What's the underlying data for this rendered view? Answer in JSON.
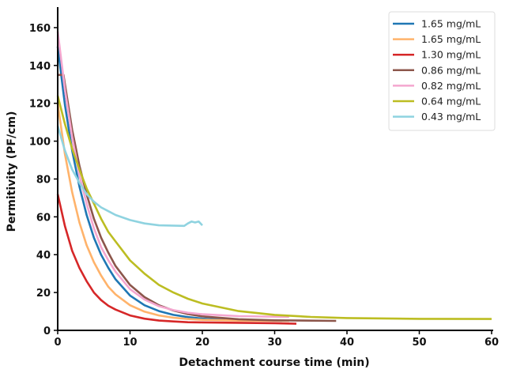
{
  "chart_data": {
    "type": "line",
    "title": "",
    "xlabel": "Detachment course time (min)",
    "ylabel": "Permitivity (PF/cm)",
    "xlim": [
      0,
      60
    ],
    "ylim": [
      0,
      170
    ],
    "xticks": [
      "0",
      "10",
      "20",
      "30",
      "40",
      "50",
      "60"
    ],
    "yticks": [
      "0",
      "20",
      "40",
      "60",
      "80",
      "100",
      "120",
      "140",
      "160"
    ],
    "grid": false,
    "legend_position": "top-right",
    "series": [
      {
        "name": "1.65 mg/mL",
        "color": "#1f77b4",
        "x": [
          0,
          1,
          2,
          3,
          4,
          5,
          6,
          7,
          8,
          10,
          12,
          14,
          16,
          18,
          20,
          25,
          31
        ],
        "y": [
          150,
          119,
          95,
          76,
          61,
          49,
          40,
          33,
          27,
          18.4,
          13.3,
          10.2,
          8.2,
          7,
          6.2,
          5.4,
          5.1
        ]
      },
      {
        "name": "1.65 mg/mL",
        "color": "#ffb36b",
        "x": [
          0,
          1,
          2,
          3,
          4,
          5,
          6,
          7,
          8,
          10,
          12,
          14,
          16,
          18,
          20,
          25,
          32
        ],
        "y": [
          120,
          93,
          73,
          57,
          45,
          36,
          29,
          23,
          19,
          13.3,
          9.9,
          7.9,
          6.7,
          6,
          5.6,
          5.2,
          5
        ]
      },
      {
        "name": "1.30 mg/mL",
        "color": "#d62728",
        "x": [
          0,
          1,
          2,
          3,
          4,
          5,
          6,
          7,
          8,
          10,
          12,
          14,
          16,
          18,
          20,
          25,
          30,
          33
        ],
        "y": [
          72,
          55,
          42,
          33,
          26,
          20,
          16,
          13,
          11,
          7.9,
          6.2,
          5.2,
          4.7,
          4.3,
          4.2,
          4,
          3.8,
          3.5
        ]
      },
      {
        "name": "0.86 mg/mL",
        "color": "#8c564b",
        "x": [
          0,
          0.8,
          2,
          3,
          4,
          5,
          6,
          7,
          8,
          10,
          12,
          14,
          16,
          18,
          20,
          25,
          30,
          38.5
        ],
        "y": [
          135,
          135,
          106,
          87,
          72,
          59,
          49,
          41,
          34,
          24,
          17.6,
          13.3,
          10.5,
          8.6,
          7.4,
          5.9,
          5.3,
          5
        ]
      },
      {
        "name": "0.82 mg/mL",
        "color": "#f4a6cf",
        "x": [
          0,
          1,
          2,
          3,
          4,
          5,
          6,
          7,
          8,
          10,
          12,
          14,
          16,
          18,
          20,
          25,
          32
        ],
        "y": [
          158,
          127,
          102,
          82,
          67,
          54,
          44,
          37,
          31,
          21.8,
          16.3,
          12.8,
          10.7,
          9.3,
          8.5,
          7.5,
          7.1
        ]
      },
      {
        "name": "0.64 mg/mL",
        "color": "#bcbd22",
        "x": [
          0,
          1,
          2,
          3,
          4,
          5,
          6,
          7,
          8,
          10,
          12,
          14,
          16,
          18,
          20,
          25,
          30,
          35,
          40,
          50,
          60
        ],
        "y": [
          124,
          109,
          96,
          85,
          75,
          67,
          59,
          52,
          47,
          37,
          30,
          24,
          20,
          16.7,
          14.2,
          10.2,
          8.2,
          7.1,
          6.5,
          6.1,
          6
        ]
      },
      {
        "name": "0.43 mg/mL",
        "color": "#8fd3e0",
        "x": [
          0,
          1,
          2,
          3,
          4,
          5,
          6,
          7,
          8,
          10,
          12,
          14,
          17.5,
          18,
          18.5,
          19,
          19.5,
          20
        ],
        "y": [
          108,
          95,
          85,
          78,
          72,
          68,
          65,
          63,
          61,
          58.3,
          56.5,
          55.5,
          55.2,
          56.5,
          57.5,
          57,
          57.5,
          55.5
        ]
      }
    ]
  }
}
